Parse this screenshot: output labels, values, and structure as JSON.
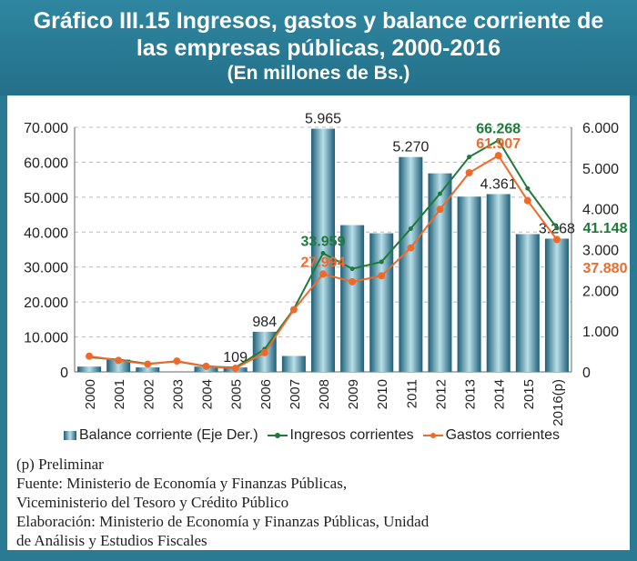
{
  "chart_data": {
    "type": "bar+line",
    "title_line1": "Gráfico III.15 Ingresos, gastos y balance corriente de",
    "title_line2": "las empresas públicas, 2000-2016",
    "subtitle": "(En millones de Bs.)",
    "categories": [
      "2000",
      "2001",
      "2002",
      "2003",
      "2004",
      "2005",
      "2006",
      "2007",
      "2008",
      "2009",
      "2010",
      "2011",
      "2012",
      "2013",
      "2014",
      "2015",
      "2016(p)"
    ],
    "left_axis": {
      "range": [
        0,
        70000
      ],
      "ticks": [
        "0",
        "10.000",
        "20.000",
        "30.000",
        "40.000",
        "50.000",
        "60.000",
        "70.000"
      ]
    },
    "right_axis": {
      "range": [
        0,
        6000
      ],
      "ticks": [
        "0",
        "1.000",
        "2.000",
        "3.000",
        "4.000",
        "5.000",
        "6.000"
      ]
    },
    "series": [
      {
        "name": "Balance corriente (Eje Der.)",
        "type": "bar",
        "axis": "right",
        "color": "#3f8fa8",
        "values": [
          130,
          300,
          110,
          0,
          130,
          109,
          984,
          390,
          5965,
          3600,
          3400,
          5270,
          4870,
          4300,
          4361,
          3380,
          3268
        ],
        "labels": {
          "5": "109",
          "6": "984",
          "8": "5.965",
          "11": "5.270",
          "14": "4.361",
          "16": "3.268"
        }
      },
      {
        "name": "Ingresos corrientes",
        "type": "line",
        "axis": "left",
        "color": "#1f7a3a",
        "values": [
          4200,
          3500,
          2300,
          3000,
          1600,
          1200,
          6500,
          18000,
          33959,
          29500,
          31500,
          41000,
          51000,
          61500,
          66268,
          52500,
          41148
        ],
        "labels": {
          "8": "33.959",
          "14": "66.268",
          "16": "41.148"
        }
      },
      {
        "name": "Gastos corrientes",
        "type": "line",
        "axis": "left",
        "color": "#ef6a2a",
        "values": [
          4500,
          3300,
          2200,
          3100,
          1600,
          1000,
          5500,
          17800,
          27994,
          25800,
          27500,
          35500,
          46500,
          57000,
          61907,
          49000,
          37880
        ],
        "labels": {
          "8": "27.994",
          "14": "61.907",
          "16": "37.880"
        }
      }
    ],
    "grid": true,
    "legend_position": "bottom"
  },
  "notes": [
    "(p) Preliminar",
    "Fuente: Ministerio de Economía y Finanzas Públicas,",
    "Viceministerio del Tesoro y Crédito Público",
    "Elaboración: Ministerio de Economía y Finanzas Públicas, Unidad",
    "de Análisis y Estudios Fiscales"
  ]
}
